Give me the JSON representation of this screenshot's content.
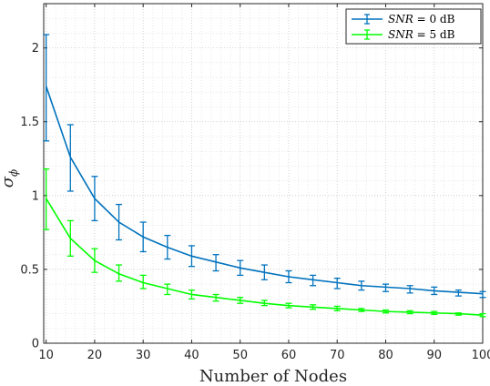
{
  "chart_data": {
    "type": "line",
    "xlabel": "Number of Nodes",
    "ylabel": "σ_ϕ",
    "ylabel_main": "σ",
    "ylabel_sub": "ϕ",
    "xlim": [
      9.5,
      100
    ],
    "ylim": [
      0,
      2.3
    ],
    "x_ticks": [
      10,
      20,
      30,
      40,
      50,
      60,
      70,
      80,
      90,
      100
    ],
    "x_tick_labels": [
      "10",
      "20",
      "30",
      "40",
      "50",
      "60",
      "70",
      "80",
      "90",
      "100"
    ],
    "y_ticks": [
      0,
      0.5,
      1,
      1.5,
      2
    ],
    "y_tick_labels": [
      "0",
      "0.5",
      "1",
      "1.5",
      "2"
    ],
    "grid": "major and minor, dotted",
    "legend_position": "top-right",
    "x": [
      10,
      15,
      20,
      25,
      30,
      35,
      40,
      45,
      50,
      55,
      60,
      65,
      70,
      75,
      80,
      85,
      90,
      95,
      100
    ],
    "series": [
      {
        "name": "SNR = 0 dB",
        "name_var": "SNR",
        "name_rest": " = 0 dB",
        "color": "#0072BD",
        "values": [
          1.74,
          1.26,
          0.98,
          0.82,
          0.72,
          0.65,
          0.59,
          0.55,
          0.51,
          0.48,
          0.45,
          0.43,
          0.41,
          0.39,
          0.38,
          0.37,
          0.355,
          0.345,
          0.335
        ],
        "error_low": [
          1.37,
          1.03,
          0.83,
          0.7,
          0.62,
          0.57,
          0.52,
          0.49,
          0.46,
          0.43,
          0.41,
          0.39,
          0.37,
          0.36,
          0.35,
          0.34,
          0.33,
          0.32,
          0.31
        ],
        "error_high": [
          2.09,
          1.48,
          1.13,
          0.94,
          0.82,
          0.73,
          0.66,
          0.6,
          0.56,
          0.53,
          0.49,
          0.46,
          0.44,
          0.42,
          0.4,
          0.39,
          0.38,
          0.36,
          0.35
        ]
      },
      {
        "name": "SNR = 5 dB",
        "name_var": "SNR",
        "name_rest": " = 5 dB",
        "color": "#00FF00",
        "values": [
          0.98,
          0.71,
          0.56,
          0.47,
          0.41,
          0.37,
          0.33,
          0.31,
          0.29,
          0.27,
          0.255,
          0.245,
          0.235,
          0.225,
          0.215,
          0.21,
          0.205,
          0.2,
          0.19
        ],
        "error_low": [
          0.77,
          0.59,
          0.48,
          0.42,
          0.37,
          0.33,
          0.3,
          0.285,
          0.27,
          0.255,
          0.24,
          0.23,
          0.22,
          0.215,
          0.205,
          0.2,
          0.195,
          0.19,
          0.18
        ],
        "error_high": [
          1.18,
          0.83,
          0.64,
          0.53,
          0.46,
          0.4,
          0.36,
          0.33,
          0.31,
          0.29,
          0.27,
          0.26,
          0.25,
          0.235,
          0.225,
          0.22,
          0.215,
          0.205,
          0.2
        ]
      }
    ]
  }
}
